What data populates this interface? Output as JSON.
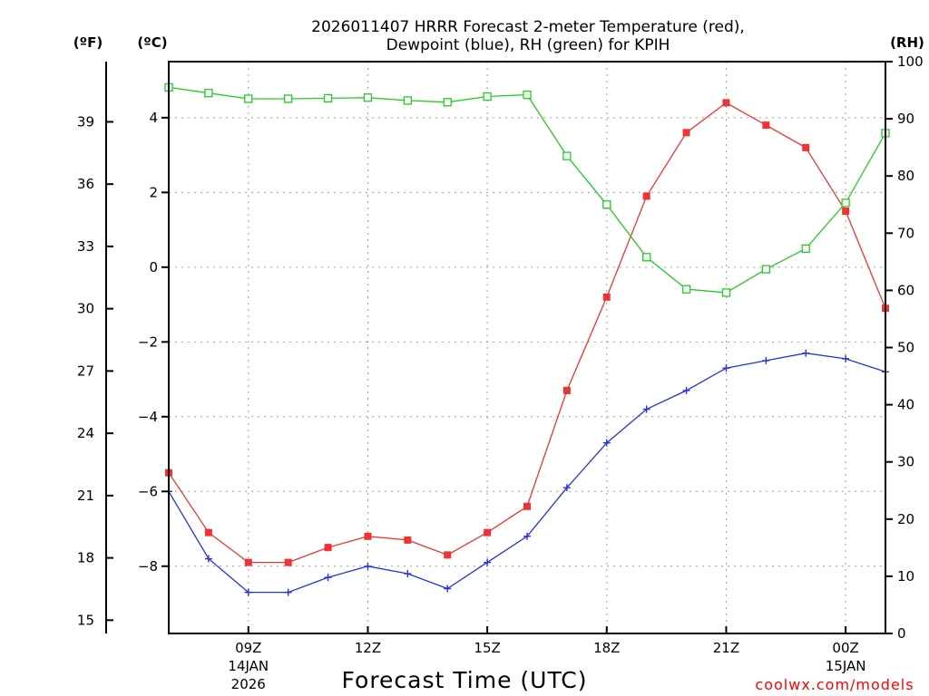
{
  "chart_data": {
    "type": "line",
    "title_line1": "2026011407 HRRR Forecast 2-meter Temperature (red),",
    "title_line2": "Dewpoint (blue), RH (green) for KPIH",
    "xlabel": "Forecast Time (UTC)",
    "credit": "coolwx.com/models",
    "units": {
      "fahrenheit": "(ºF)",
      "celsius": "(ºC)",
      "rh": "(RH)"
    },
    "x_hours": [
      7,
      8,
      9,
      10,
      11,
      12,
      13,
      14,
      15,
      16,
      17,
      18,
      19,
      20,
      21,
      22,
      23,
      24,
      25
    ],
    "x_range": [
      7,
      25
    ],
    "x_ticks": [
      {
        "hour": 9,
        "label": "09Z",
        "date": "14JAN",
        "year": "2026"
      },
      {
        "hour": 12,
        "label": "12Z",
        "date": "",
        "year": ""
      },
      {
        "hour": 15,
        "label": "15Z",
        "date": "",
        "year": ""
      },
      {
        "hour": 18,
        "label": "18Z",
        "date": "",
        "year": ""
      },
      {
        "hour": 21,
        "label": "21Z",
        "date": "",
        "year": ""
      },
      {
        "hour": 24,
        "label": "00Z",
        "date": "15JAN",
        "year": ""
      }
    ],
    "celsius_range": [
      -9.8,
      5.5
    ],
    "celsius_ticks": [
      4,
      2,
      0,
      -2,
      -4,
      -6,
      -8
    ],
    "fahrenheit_ticks": [
      39,
      36,
      33,
      30,
      27,
      24,
      21,
      18,
      15
    ],
    "rh_range": [
      0,
      100
    ],
    "rh_ticks": [
      100,
      90,
      80,
      70,
      60,
      50,
      40,
      30,
      20,
      10,
      0
    ],
    "series": [
      {
        "name": "Temperature",
        "axis": "celsius",
        "color": "#ee3333",
        "marker": "filled-square",
        "values": [
          -5.5,
          -7.1,
          -7.9,
          -7.9,
          -7.5,
          -7.2,
          -7.3,
          -7.7,
          -7.1,
          -6.4,
          -3.3,
          -0.8,
          1.9,
          3.6,
          4.4,
          3.8,
          3.2,
          1.5,
          -1.1
        ]
      },
      {
        "name": "Dewpoint",
        "axis": "celsius",
        "color": "#2233dd",
        "marker": "plus",
        "values": [
          -6.0,
          -7.8,
          -8.7,
          -8.7,
          -8.3,
          -8.0,
          -8.2,
          -8.6,
          -7.9,
          -7.2,
          -5.9,
          -4.7,
          -3.8,
          -3.3,
          -2.7,
          -2.5,
          -2.3,
          -2.45,
          -2.8
        ]
      },
      {
        "name": "RH",
        "axis": "rh",
        "color": "#22cc22",
        "marker": "open-square",
        "values": [
          95.5,
          94.5,
          93.5,
          93.5,
          93.6,
          93.7,
          93.2,
          92.9,
          93.9,
          94.2,
          83.5,
          75.0,
          65.8,
          60.2,
          59.6,
          63.7,
          67.3,
          75.3,
          87.5
        ]
      }
    ]
  }
}
